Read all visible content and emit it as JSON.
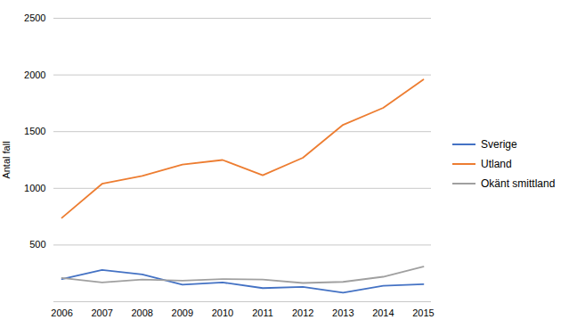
{
  "chart_data": {
    "type": "line",
    "x": [
      2006,
      2007,
      2008,
      2009,
      2010,
      2011,
      2012,
      2013,
      2014,
      2015
    ],
    "series": [
      {
        "name": "Sverige",
        "color": "#4472c4",
        "values": [
          200,
          280,
          240,
          150,
          170,
          120,
          130,
          80,
          140,
          155
        ]
      },
      {
        "name": "Utland",
        "color": "#ed7d31",
        "values": [
          740,
          1040,
          1110,
          1210,
          1250,
          1115,
          1270,
          1560,
          1710,
          1960
        ]
      },
      {
        "name": "Okänt smittland",
        "color": "#a0a0a0",
        "values": [
          210,
          170,
          195,
          185,
          200,
          195,
          165,
          175,
          220,
          310
        ]
      }
    ],
    "ylabel": "Antal fall",
    "xlim": [
      2005.8,
      2015.2
    ],
    "xticks": [
      2006,
      2007,
      2008,
      2009,
      2010,
      2011,
      2012,
      2013,
      2014,
      2015
    ],
    "ylim": [
      0,
      2500
    ],
    "yticks": [
      {
        "value": 0,
        "label": ""
      },
      500,
      1000,
      1500,
      2000,
      2500
    ],
    "grid": true,
    "legend": "right"
  }
}
